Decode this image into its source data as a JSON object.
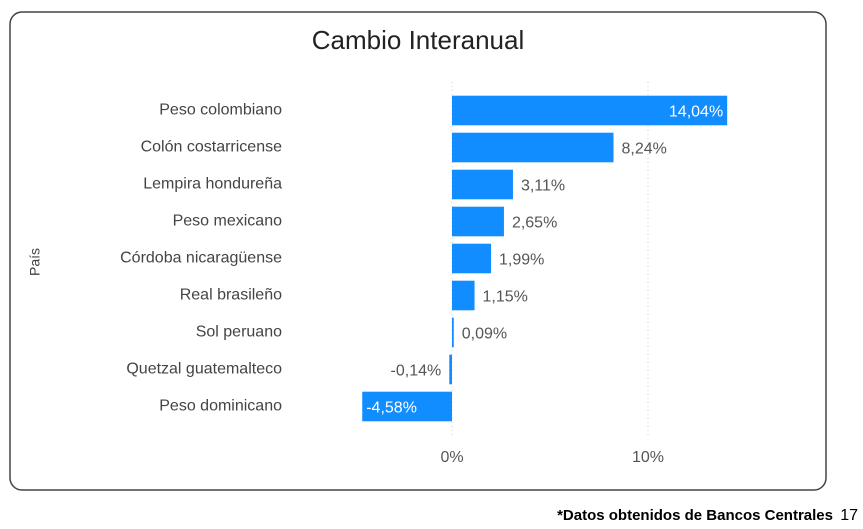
{
  "chart_data": {
    "type": "barh",
    "title": "Cambio Interanual",
    "y_label": "País",
    "categories": [
      "Peso colombiano",
      "Colón costarricense",
      "Lempira hondureña",
      "Peso mexicano",
      "Córdoba nicaragüense",
      "Real brasileño",
      "Sol peruano",
      "Quetzal guatemalteco",
      "Peso dominicano"
    ],
    "values": [
      14.04,
      8.24,
      3.11,
      2.65,
      1.99,
      1.15,
      0.09,
      -0.14,
      -4.58
    ],
    "value_labels": [
      "14,04%",
      "8,24%",
      "3,11%",
      "2,65%",
      "1,99%",
      "1,15%",
      "0,09%",
      "-0,14%",
      "-4,58%"
    ],
    "color": "#118dff",
    "xlim": [
      -5,
      15
    ],
    "xticks": [
      {
        "value": 0,
        "label": "0%"
      },
      {
        "value": 10,
        "label": "10%"
      }
    ],
    "grid": true
  },
  "footnote": "*Datos obtenidos de Bancos Centrales",
  "page_number": "17"
}
